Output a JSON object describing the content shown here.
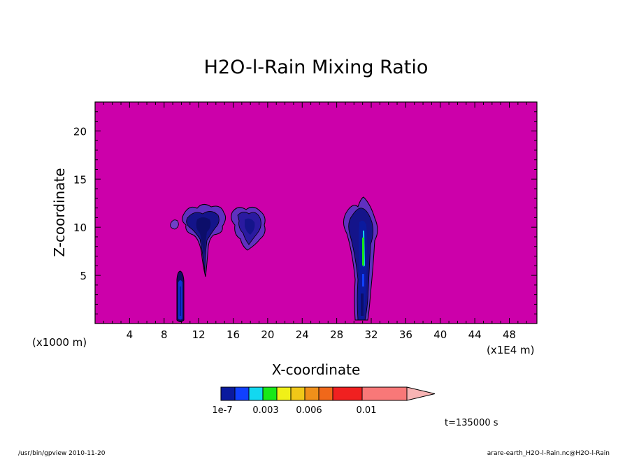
{
  "chart_data": {
    "type": "heatmap",
    "title": "H2O-l-Rain Mixing Ratio",
    "xlabel": "X-coordinate",
    "ylabel": "Z-coordinate",
    "x_unit_left": "(x1000 m)",
    "x_unit_right": "(x1E4 m)",
    "time_label": "t=135000 s",
    "x_ticks": [
      "4",
      "8",
      "12",
      "16",
      "20",
      "24",
      "28",
      "32",
      "36",
      "40",
      "44",
      "48"
    ],
    "x_tick_values": [
      4,
      8,
      12,
      16,
      20,
      24,
      28,
      32,
      36,
      40,
      44,
      48
    ],
    "y_ticks": [
      "5",
      "10",
      "15",
      "20"
    ],
    "y_tick_values": [
      5,
      10,
      15,
      20
    ],
    "xlim": [
      0,
      51.2
    ],
    "ylim": [
      0,
      23
    ],
    "background_color": "#cc00aa",
    "colorbar": {
      "labels": [
        "1e-7",
        "0.003",
        "0.006",
        "0.01"
      ],
      "colors": [
        "#0a1a9e",
        "#1040ff",
        "#12d8f0",
        "#18e818",
        "#f0f018",
        "#f0c818",
        "#f0901a",
        "#f0681a",
        "#f02020",
        "#f87878",
        "#f8b4b4"
      ]
    },
    "features": [
      {
        "name": "low-column",
        "x_center": 9.8,
        "z_range": [
          0.2,
          5.5
        ],
        "level": "1e-7"
      },
      {
        "name": "cloud-1",
        "x_center": 12.5,
        "z_range": [
          5,
          12
        ],
        "level": "1e-7"
      },
      {
        "name": "cloud-2",
        "x_center": 17.8,
        "z_range": [
          7.8,
          12
        ],
        "level": "1e-7"
      },
      {
        "name": "tall-column",
        "x_center": 30.8,
        "z_range": [
          0.3,
          13
        ],
        "level": "1e-7",
        "core_level": "0.003"
      }
    ]
  },
  "footer": {
    "left": "/usr/bin/gpview   2010-11-20",
    "right": "arare-earth_H2O-l-Rain.nc@H2O-l-Rain"
  }
}
